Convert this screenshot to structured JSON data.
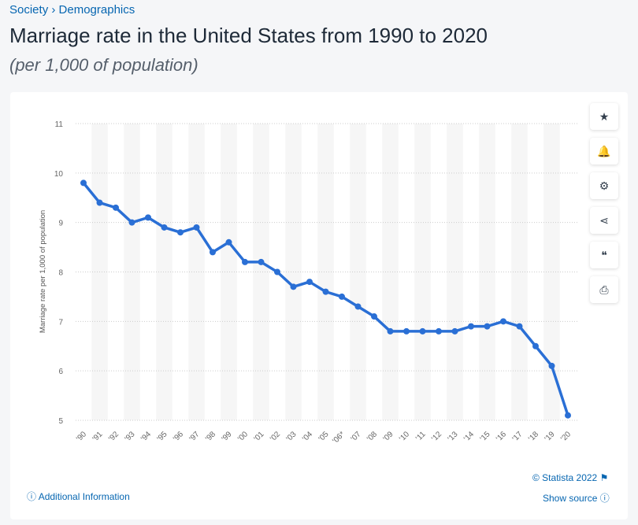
{
  "breadcrumb": {
    "items": [
      "Society",
      "Demographics"
    ],
    "sep": "›"
  },
  "title": "Marriage rate in the United States from 1990 to 2020",
  "subtitle": "(per 1,000 of population)",
  "tools": [
    "star-icon",
    "bell-icon",
    "gear-icon",
    "share-icon",
    "quote-icon",
    "print-icon"
  ],
  "tool_glyphs": [
    "★",
    "🔔",
    "⚙",
    "⋖",
    "❝",
    "⎙"
  ],
  "footer": {
    "copyright": "© Statista 2022",
    "show_source": "Show source",
    "additional": "Additional Information"
  },
  "colors": {
    "line": "#2a6fd5",
    "link": "#0666b1"
  },
  "chart_data": {
    "type": "line",
    "ylabel": "Marriage rate per 1,000 of population",
    "ylim": [
      5,
      11
    ],
    "yticks": [
      5,
      6,
      7,
      8,
      9,
      10,
      11
    ],
    "categories": [
      "'90",
      "'91",
      "'92",
      "'93",
      "'94",
      "'95",
      "'96",
      "'97",
      "'98",
      "'99",
      "'00",
      "'01",
      "'02",
      "'03",
      "'04",
      "'05",
      "'06*",
      "'07",
      "'08",
      "'09",
      "'10",
      "'11",
      "'12",
      "'13",
      "'14",
      "'15",
      "'16",
      "'17",
      "'18",
      "'19",
      "'20"
    ],
    "values": [
      9.8,
      9.4,
      9.3,
      9.0,
      9.1,
      8.9,
      8.8,
      8.9,
      8.4,
      8.6,
      8.2,
      8.2,
      8.0,
      7.7,
      7.8,
      7.6,
      7.5,
      7.3,
      7.1,
      6.8,
      6.8,
      6.8,
      6.8,
      6.8,
      6.9,
      6.9,
      7.0,
      6.9,
      6.5,
      6.1,
      5.1
    ]
  }
}
